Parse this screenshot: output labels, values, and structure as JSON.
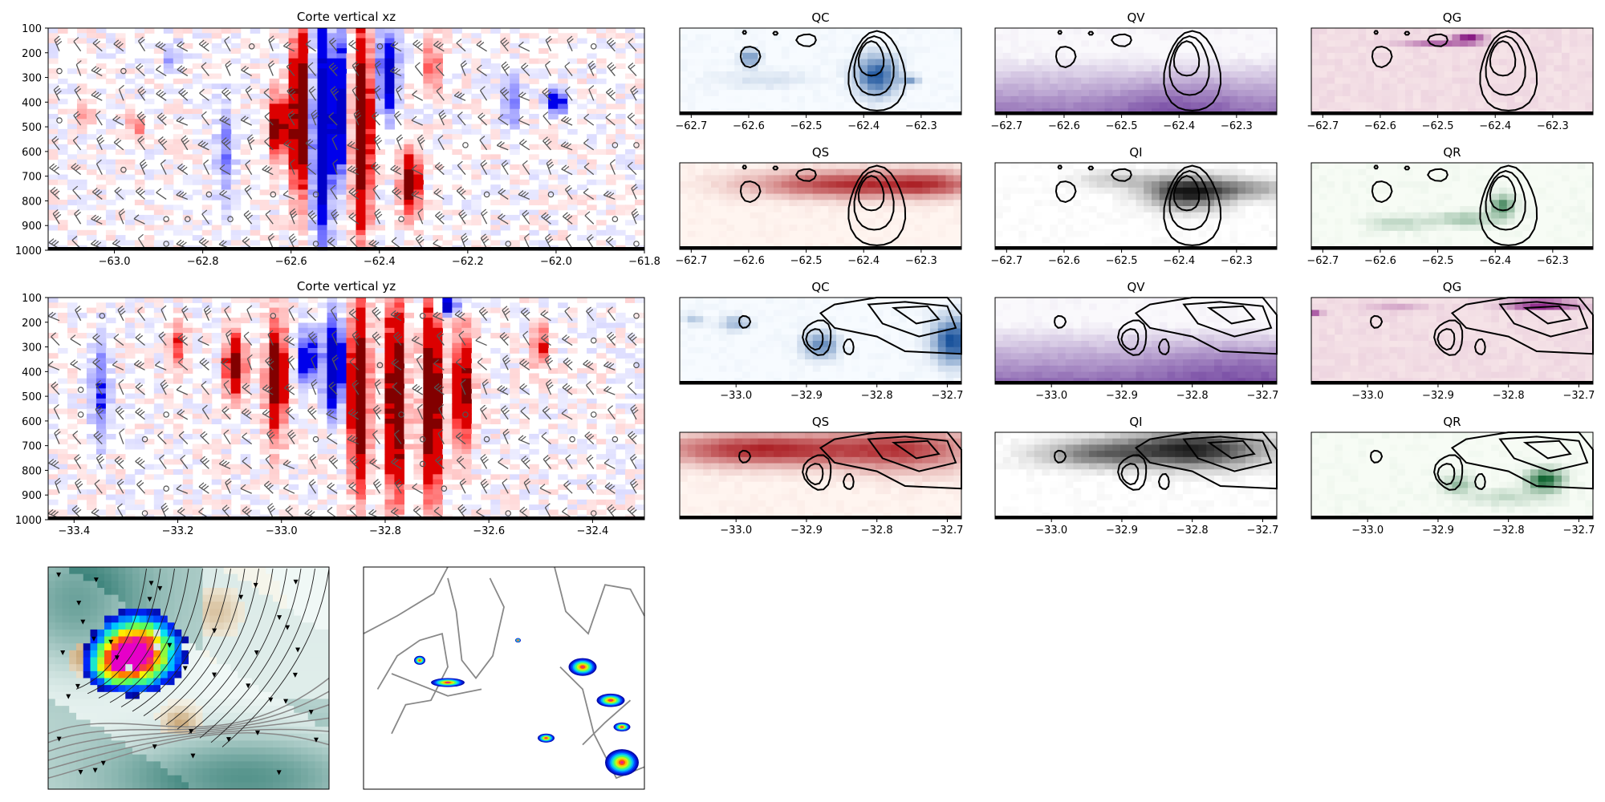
{
  "figure": {
    "background": "#ffffff"
  },
  "chart_data": [
    {
      "id": "xz-section",
      "type": "heatmap",
      "title": "Corte vertical xz",
      "xlim": [
        -63.15,
        -61.8
      ],
      "ylim": [
        1000,
        100
      ],
      "xticks": [
        -63.0,
        -62.8,
        -62.6,
        -62.4,
        -62.2,
        -62.0,
        -61.8
      ],
      "xtick_labels": [
        "−63.0",
        "−62.8",
        "−62.6",
        "−62.4",
        "−62.2",
        "−62.0",
        "−61.8"
      ],
      "yticks": [
        100,
        200,
        300,
        400,
        500,
        600,
        700,
        800,
        900,
        1000
      ],
      "ytick_labels": [
        "100",
        "200",
        "300",
        "400",
        "500",
        "600",
        "700",
        "800",
        "900",
        "1000"
      ],
      "colormap": "bwr",
      "overlay": "wind barbs",
      "features": [
        {
          "x": -62.58,
          "ytop": 120,
          "ybot": 760,
          "v": 1.0
        },
        {
          "x": -62.63,
          "ytop": 380,
          "ybot": 620,
          "v": 0.8
        },
        {
          "x": -62.53,
          "ytop": 120,
          "ybot": 930,
          "v": -1.0
        },
        {
          "x": -62.49,
          "ytop": 150,
          "ybot": 700,
          "v": -0.7
        },
        {
          "x": -62.44,
          "ytop": 120,
          "ybot": 900,
          "v": 1.0
        },
        {
          "x": -62.38,
          "ytop": 120,
          "ybot": 450,
          "v": -0.7
        },
        {
          "x": -62.33,
          "ytop": 600,
          "ybot": 850,
          "v": 0.8
        },
        {
          "x": -62.1,
          "ytop": 300,
          "ybot": 500,
          "v": -0.3
        },
        {
          "x": -62.0,
          "ytop": 350,
          "ybot": 450,
          "v": -0.55
        },
        {
          "x": -62.87,
          "ytop": 150,
          "ybot": 280,
          "v": -0.2
        },
        {
          "x": -62.95,
          "ytop": 450,
          "ybot": 540,
          "v": 0.25
        },
        {
          "x": -62.75,
          "ytop": 400,
          "ybot": 800,
          "v": -0.25
        },
        {
          "x": -62.28,
          "ytop": 150,
          "ybot": 350,
          "v": 0.3
        },
        {
          "x": -63.07,
          "ytop": 400,
          "ybot": 500,
          "v": 0.15
        }
      ]
    },
    {
      "id": "yz-section",
      "type": "heatmap",
      "title": "Corte vertical yz",
      "xlim": [
        -33.45,
        -32.3
      ],
      "ylim": [
        1000,
        100
      ],
      "xticks": [
        -33.4,
        -33.2,
        -33.0,
        -32.8,
        -32.6,
        -32.4
      ],
      "xtick_labels": [
        "−33.4",
        "−33.2",
        "−33.0",
        "−32.8",
        "−32.6",
        "−32.4"
      ],
      "yticks": [
        100,
        200,
        300,
        400,
        500,
        600,
        700,
        800,
        900,
        1000
      ],
      "ytick_labels": [
        "100",
        "200",
        "300",
        "400",
        "500",
        "600",
        "700",
        "800",
        "900",
        "1000"
      ],
      "colormap": "bwr",
      "overlay": "wind barbs",
      "features": [
        {
          "x": -32.85,
          "ytop": 130,
          "ybot": 850,
          "v": 1.0
        },
        {
          "x": -32.78,
          "ytop": 120,
          "ybot": 900,
          "v": 1.0
        },
        {
          "x": -32.71,
          "ytop": 120,
          "ybot": 900,
          "v": 1.0
        },
        {
          "x": -32.65,
          "ytop": 250,
          "ybot": 700,
          "v": 0.75
        },
        {
          "x": -32.9,
          "ytop": 200,
          "ybot": 550,
          "v": -1.0
        },
        {
          "x": -32.95,
          "ytop": 230,
          "ybot": 450,
          "v": -0.55
        },
        {
          "x": -32.68,
          "ytop": 100,
          "ybot": 170,
          "v": -0.9
        },
        {
          "x": -33.01,
          "ytop": 200,
          "ybot": 650,
          "v": 0.9
        },
        {
          "x": -33.09,
          "ytop": 250,
          "ybot": 500,
          "v": 0.8
        },
        {
          "x": -33.2,
          "ytop": 200,
          "ybot": 400,
          "v": 0.3
        },
        {
          "x": -33.35,
          "ytop": 250,
          "ybot": 700,
          "v": -0.3
        },
        {
          "x": -32.5,
          "ytop": 200,
          "ybot": 400,
          "v": 0.3
        }
      ]
    },
    {
      "id": "xz-QC",
      "type": "heatmap",
      "title": "QC",
      "colormap": "Blues",
      "contours": true,
      "xlim": [
        -62.72,
        -62.23
      ],
      "xticks": [
        -62.7,
        -62.6,
        -62.5,
        -62.4,
        -62.3
      ],
      "xtick_labels": [
        "−62.7",
        "−62.6",
        "−62.5",
        "−62.4",
        "−62.3"
      ]
    },
    {
      "id": "xz-QV",
      "type": "heatmap",
      "title": "QV",
      "colormap": "Purples",
      "contours": true,
      "xlim": [
        -62.72,
        -62.23
      ],
      "xticks": [
        -62.7,
        -62.6,
        -62.5,
        -62.4,
        -62.3
      ],
      "xtick_labels": [
        "−62.7",
        "−62.6",
        "−62.5",
        "−62.4",
        "−62.3"
      ]
    },
    {
      "id": "xz-QG",
      "type": "heatmap",
      "title": "QG",
      "colormap": "RdPu",
      "contours": true,
      "xlim": [
        -62.72,
        -62.23
      ],
      "xticks": [
        -62.7,
        -62.6,
        -62.5,
        -62.4,
        -62.3
      ],
      "xtick_labels": [
        "−62.7",
        "−62.6",
        "−62.5",
        "−62.4",
        "−62.3"
      ]
    },
    {
      "id": "xz-QS",
      "type": "heatmap",
      "title": "QS",
      "colormap": "Reds",
      "contours": true,
      "xlim": [
        -62.72,
        -62.23
      ],
      "xticks": [
        -62.7,
        -62.6,
        -62.5,
        -62.4,
        -62.3
      ],
      "xtick_labels": [
        "−62.7",
        "−62.6",
        "−62.5",
        "−62.4",
        "−62.3"
      ]
    },
    {
      "id": "xz-QI",
      "type": "heatmap",
      "title": "QI",
      "colormap": "Greys",
      "contours": true,
      "xlim": [
        -62.72,
        -62.23
      ],
      "xticks": [
        -62.7,
        -62.6,
        -62.5,
        -62.4,
        -62.3
      ],
      "xtick_labels": [
        "−62.7",
        "−62.6",
        "−62.5",
        "−62.4",
        "−62.3"
      ]
    },
    {
      "id": "xz-QR",
      "type": "heatmap",
      "title": "QR",
      "colormap": "Greens",
      "contours": true,
      "xlim": [
        -62.72,
        -62.23
      ],
      "xticks": [
        -62.7,
        -62.6,
        -62.5,
        -62.4,
        -62.3
      ],
      "xtick_labels": [
        "−62.7",
        "−62.6",
        "−62.5",
        "−62.4",
        "−62.3"
      ]
    },
    {
      "id": "yz-QC",
      "type": "heatmap",
      "title": "QC",
      "colormap": "Blues",
      "contours": true,
      "xlim": [
        -33.08,
        -32.68
      ],
      "xticks": [
        -33.0,
        -32.9,
        -32.8,
        -32.7
      ],
      "xtick_labels": [
        "−33.0",
        "−32.9",
        "−32.8",
        "−32.7"
      ]
    },
    {
      "id": "yz-QV",
      "type": "heatmap",
      "title": "QV",
      "colormap": "Purples",
      "contours": true,
      "xlim": [
        -33.08,
        -32.68
      ],
      "xticks": [
        -33.0,
        -32.9,
        -32.8,
        -32.7
      ],
      "xtick_labels": [
        "−33.0",
        "−32.9",
        "−32.8",
        "−32.7"
      ]
    },
    {
      "id": "yz-QG",
      "type": "heatmap",
      "title": "QG",
      "colormap": "RdPu",
      "contours": true,
      "xlim": [
        -33.08,
        -32.68
      ],
      "xticks": [
        -33.0,
        -32.9,
        -32.8,
        -32.7
      ],
      "xtick_labels": [
        "−33.0",
        "−32.9",
        "−32.8",
        "−32.7"
      ]
    },
    {
      "id": "yz-QS",
      "type": "heatmap",
      "title": "QS",
      "colormap": "Reds",
      "contours": true,
      "xlim": [
        -33.08,
        -32.68
      ],
      "xticks": [
        -33.0,
        -32.9,
        -32.8,
        -32.7
      ],
      "xtick_labels": [
        "−33.0",
        "−32.9",
        "−32.8",
        "−32.7"
      ]
    },
    {
      "id": "yz-QI",
      "type": "heatmap",
      "title": "QI",
      "colormap": "Greys",
      "contours": true,
      "xlim": [
        -33.08,
        -32.68
      ],
      "xticks": [
        -33.0,
        -32.9,
        -32.8,
        -32.7
      ],
      "xtick_labels": [
        "−33.0",
        "−32.9",
        "−32.8",
        "−32.7"
      ]
    },
    {
      "id": "yz-QR",
      "type": "heatmap",
      "title": "QR",
      "colormap": "Greens",
      "contours": true,
      "xlim": [
        -33.08,
        -32.68
      ],
      "xticks": [
        -33.0,
        -32.9,
        -32.8,
        -32.7
      ],
      "xtick_labels": [
        "−33.0",
        "−32.9",
        "−32.8",
        "−32.7"
      ]
    },
    {
      "id": "map-local",
      "type": "heatmap",
      "colormap": "BrBG + jet",
      "overlay": "streamlines and gray terrain contours"
    },
    {
      "id": "map-regional",
      "type": "heatmap",
      "colormap": "jet",
      "overlay": "gray terrain contours"
    }
  ]
}
